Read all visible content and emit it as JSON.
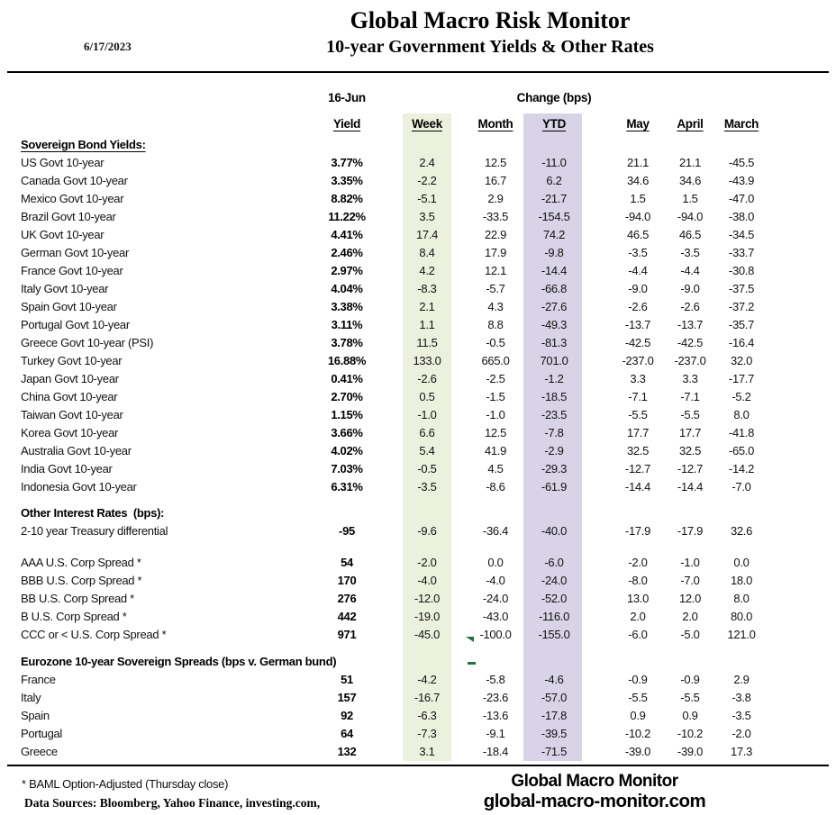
{
  "header": {
    "date": "6/17/2023",
    "title": "Global Macro Risk Monitor",
    "subtitle": "10-year Government Yields & Other Rates"
  },
  "table": {
    "group_label_left": "16-Jun",
    "group_label_right": "Change (bps)",
    "columns": [
      {
        "key": "yield",
        "label": "Yield"
      },
      {
        "key": "week",
        "label": "Week"
      },
      {
        "key": "month",
        "label": "Month"
      },
      {
        "key": "ytd",
        "label": "YTD"
      },
      {
        "key": "may",
        "label": "May"
      },
      {
        "key": "april",
        "label": "April"
      },
      {
        "key": "march",
        "label": "March"
      }
    ],
    "sections": [
      {
        "heading": "Sovereign Bond Yields:",
        "underlined": true,
        "rows": [
          {
            "label": "US Govt 10-year",
            "yield": "3.77%",
            "week": "2.4",
            "month": "12.5",
            "ytd": "-11.0",
            "may": "21.1",
            "april": "21.1",
            "march": "-45.5"
          },
          {
            "label": "Canada Govt 10-year",
            "yield": "3.35%",
            "week": "-2.2",
            "month": "16.7",
            "ytd": "6.2",
            "may": "34.6",
            "april": "34.6",
            "march": "-43.9"
          },
          {
            "label": "Mexico Govt 10-year",
            "yield": "8.82%",
            "week": "-5.1",
            "month": "2.9",
            "ytd": "-21.7",
            "may": "1.5",
            "april": "1.5",
            "march": "-47.0"
          },
          {
            "label": "Brazil Govt 10-year",
            "yield": "11.22%",
            "week": "3.5",
            "month": "-33.5",
            "ytd": "-154.5",
            "may": "-94.0",
            "april": "-94.0",
            "march": "-38.0"
          },
          {
            "label": "UK Govt 10-year",
            "yield": "4.41%",
            "week": "17.4",
            "month": "22.9",
            "ytd": "74.2",
            "may": "46.5",
            "april": "46.5",
            "march": "-34.5"
          },
          {
            "label": "German Govt 10-year",
            "yield": "2.46%",
            "week": "8.4",
            "month": "17.9",
            "ytd": "-9.8",
            "may": "-3.5",
            "april": "-3.5",
            "march": "-33.7"
          },
          {
            "label": "France Govt 10-year",
            "yield": "2.97%",
            "week": "4.2",
            "month": "12.1",
            "ytd": "-14.4",
            "may": "-4.4",
            "april": "-4.4",
            "march": "-30.8"
          },
          {
            "label": "Italy Govt 10-year",
            "yield": "4.04%",
            "week": "-8.3",
            "month": "-5.7",
            "ytd": "-66.8",
            "may": "-9.0",
            "april": "-9.0",
            "march": "-37.5"
          },
          {
            "label": "Spain Govt 10-year",
            "yield": "3.38%",
            "week": "2.1",
            "month": "4.3",
            "ytd": "-27.6",
            "may": "-2.6",
            "april": "-2.6",
            "march": "-37.2"
          },
          {
            "label": "Portugal Govt 10-year",
            "yield": "3.11%",
            "week": "1.1",
            "month": "8.8",
            "ytd": "-49.3",
            "may": "-13.7",
            "april": "-13.7",
            "march": "-35.7"
          },
          {
            "label": "Greece Govt 10-year (PSI)",
            "yield": "3.78%",
            "week": "11.5",
            "month": "-0.5",
            "ytd": "-81.3",
            "may": "-42.5",
            "april": "-42.5",
            "march": "-16.4"
          },
          {
            "label": "Turkey Govt 10-year",
            "yield": "16.88%",
            "week": "133.0",
            "month": "665.0",
            "ytd": "701.0",
            "may": "-237.0",
            "april": "-237.0",
            "march": "32.0"
          },
          {
            "label": "Japan Govt 10-year",
            "yield": "0.41%",
            "week": "-2.6",
            "month": "-2.5",
            "ytd": "-1.2",
            "may": "3.3",
            "april": "3.3",
            "march": "-17.7"
          },
          {
            "label": "China Govt 10-year",
            "yield": "2.70%",
            "week": "0.5",
            "month": "-1.5",
            "ytd": "-18.5",
            "may": "-7.1",
            "april": "-7.1",
            "march": "-5.2"
          },
          {
            "label": "Taiwan Govt 10-year",
            "yield": "1.15%",
            "week": "-1.0",
            "month": "-1.0",
            "ytd": "-23.5",
            "may": "-5.5",
            "april": "-5.5",
            "march": "8.0"
          },
          {
            "label": "Korea Govt 10-year",
            "yield": "3.66%",
            "week": "6.6",
            "month": "12.5",
            "ytd": "-7.8",
            "may": "17.7",
            "april": "17.7",
            "march": "-41.8"
          },
          {
            "label": "Australia Govt 10-year",
            "yield": "4.02%",
            "week": "5.4",
            "month": "41.9",
            "ytd": "-2.9",
            "may": "32.5",
            "april": "32.5",
            "march": "-65.0"
          },
          {
            "label": "India Govt 10-year",
            "yield": "7.03%",
            "week": "-0.5",
            "month": "4.5",
            "ytd": "-29.3",
            "may": "-12.7",
            "april": "-12.7",
            "march": "-14.2"
          },
          {
            "label": "Indonesia Govt 10-year",
            "yield": "6.31%",
            "week": "-3.5",
            "month": "-8.6",
            "ytd": "-61.9",
            "may": "-14.4",
            "april": "-14.4",
            "march": "-7.0"
          }
        ]
      },
      {
        "heading": "Other Interest Rates  (bps):",
        "underlined": false,
        "rows": [
          {
            "label": "2-10 year Treasury differential",
            "yield": "-95",
            "week": "-9.6",
            "month": "-36.4",
            "ytd": "-40.0",
            "may": "-17.9",
            "april": "-17.9",
            "march": "32.6"
          }
        ]
      },
      {
        "heading": "",
        "underlined": false,
        "rows": [
          {
            "label": "AAA U.S. Corp Spread *",
            "yield": "54",
            "week": "-2.0",
            "month": "0.0",
            "ytd": "-6.0",
            "may": "-2.0",
            "april": "-1.0",
            "march": "0.0"
          },
          {
            "label": "BBB U.S. Corp Spread *",
            "yield": "170",
            "week": "-4.0",
            "month": "-4.0",
            "ytd": "-24.0",
            "may": "-8.0",
            "april": "-7.0",
            "march": "18.0"
          },
          {
            "label": "BB U.S. Corp Spread *",
            "yield": "276",
            "week": "-12.0",
            "month": "-24.0",
            "ytd": "-52.0",
            "may": "13.0",
            "april": "12.0",
            "march": "8.0"
          },
          {
            "label": "B U.S. Corp Spread *",
            "yield": "442",
            "week": "-19.0",
            "month": "-43.0",
            "ytd": "-116.0",
            "may": "2.0",
            "april": "2.0",
            "march": "80.0"
          },
          {
            "label": "CCC or < U.S. Corp Spread *",
            "yield": "971",
            "week": "-45.0",
            "month": "-100.0",
            "ytd": "-155.0",
            "may": "-6.0",
            "april": "-5.0",
            "march": "121.0"
          }
        ]
      },
      {
        "heading": "Eurozone 10-year Sovereign Spreads (bps v. German bund)",
        "underlined": false,
        "rows": [
          {
            "label": "France",
            "yield": "51",
            "week": "-4.2",
            "month": "-5.8",
            "ytd": "-4.6",
            "may": "-0.9",
            "april": "-0.9",
            "march": "2.9"
          },
          {
            "label": "Italy",
            "yield": "157",
            "week": "-16.7",
            "month": "-23.6",
            "ytd": "-57.0",
            "may": "-5.5",
            "april": "-5.5",
            "march": "-3.8"
          },
          {
            "label": "Spain",
            "yield": "92",
            "week": "-6.3",
            "month": "-13.6",
            "ytd": "-17.8",
            "may": "0.9",
            "april": "0.9",
            "march": "-3.5"
          },
          {
            "label": "Portugal",
            "yield": "64",
            "week": "-7.3",
            "month": "-9.1",
            "ytd": "-39.5",
            "may": "-10.2",
            "april": "-10.2",
            "march": "-2.0"
          },
          {
            "label": "Greece",
            "yield": "132",
            "week": "3.1",
            "month": "-18.4",
            "ytd": "-71.5",
            "may": "-39.0",
            "april": "-39.0",
            "march": "17.3"
          }
        ]
      }
    ]
  },
  "colors": {
    "week_stripe": "#ECF1DE",
    "ytd_stripe": "#D8D3E6",
    "comment_flag": "#1E7145",
    "rule": "#000000"
  },
  "footer": {
    "footnote": "* BAML Option-Adjusted (Thursday close)",
    "data_sources": "Data Sources:  Bloomberg,  Yahoo Finance, investing.com,",
    "brand_name": "Global Macro Monitor",
    "brand_url": "global-macro-monitor.com"
  }
}
